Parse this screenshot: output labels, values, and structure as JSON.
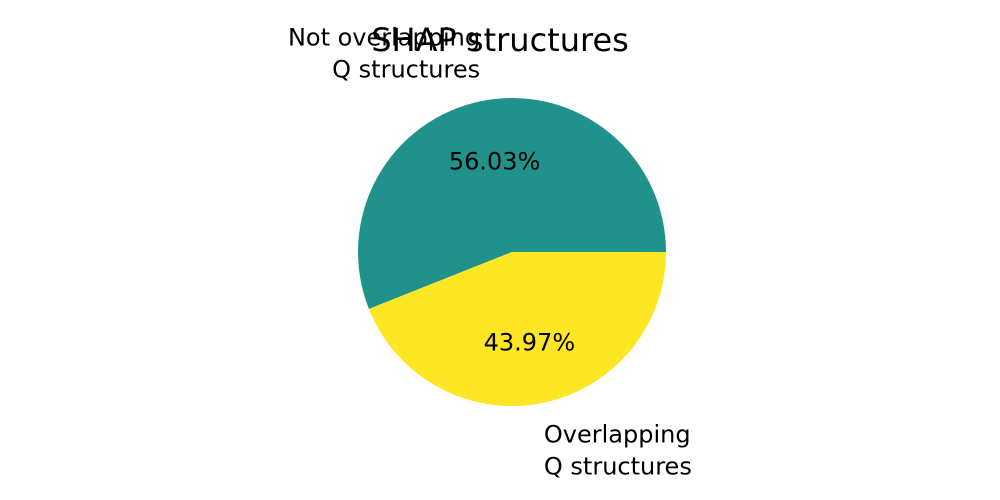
{
  "chart_data": {
    "type": "pie",
    "title": "SHAP structures",
    "categories": [
      "Not overlapping\nQ structures",
      "Overlapping\nQ structures"
    ],
    "values": [
      56.03,
      43.97
    ],
    "value_labels": [
      "56.03%",
      "43.97%"
    ],
    "colors": [
      "#21918c",
      "#fde725"
    ],
    "start_angle_deg": 0,
    "direction": "counterclockwise",
    "legend": "none"
  }
}
